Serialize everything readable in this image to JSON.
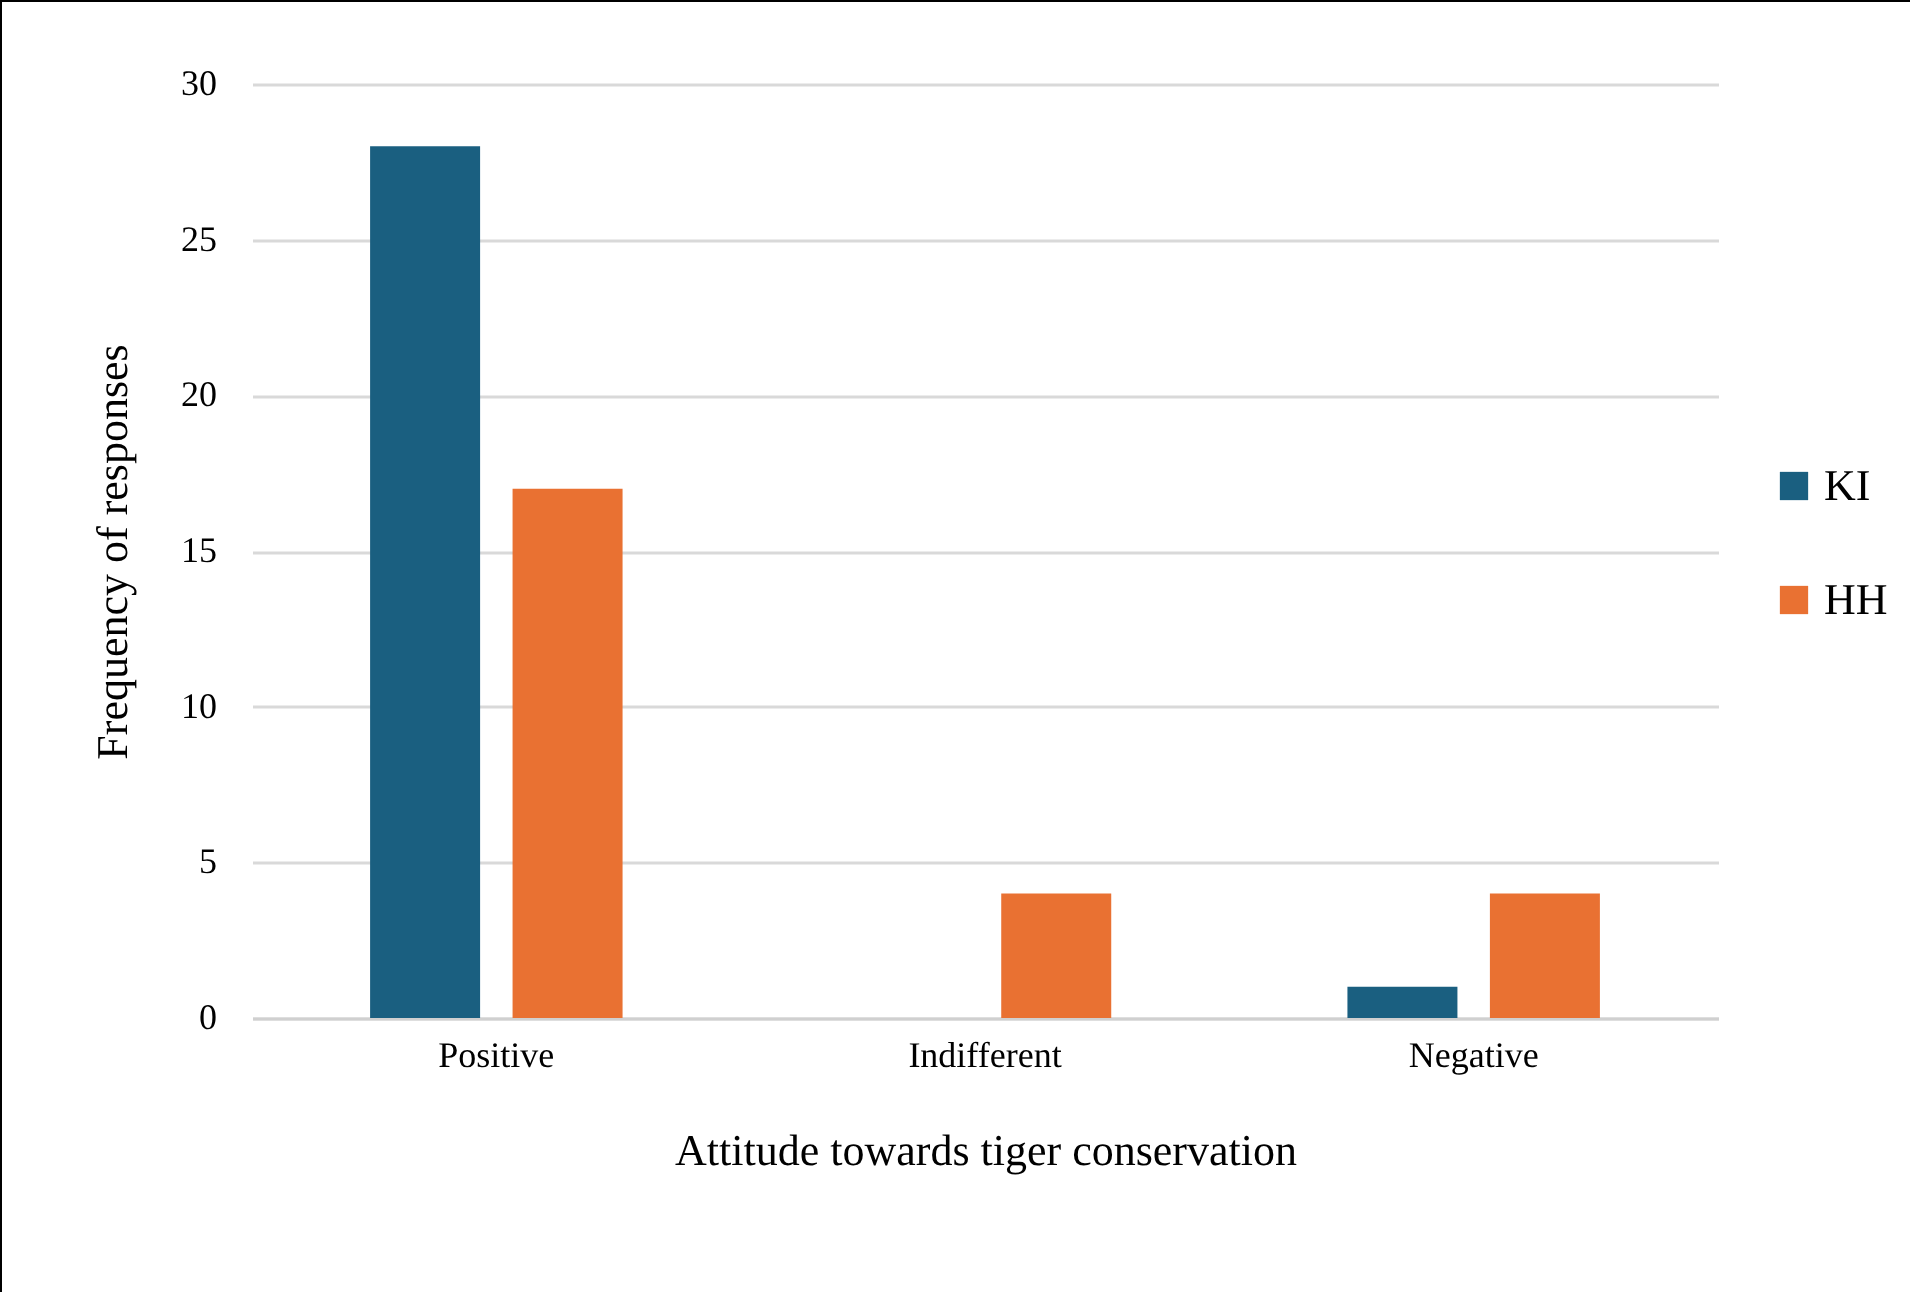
{
  "chart_data": {
    "type": "bar",
    "xlabel": "Attitude towards tiger conservation",
    "ylabel": "Frequency of responses",
    "categories": [
      "Positive",
      "Indifferent",
      "Negative"
    ],
    "series": [
      {
        "name": "KI",
        "color": "#1a5f80",
        "values": [
          28,
          0,
          1
        ]
      },
      {
        "name": "HH",
        "color": "#e97132",
        "values": [
          17,
          4,
          4
        ]
      }
    ],
    "ylim": [
      0,
      30
    ],
    "yticks": [
      0,
      5,
      10,
      15,
      20,
      25,
      30
    ],
    "grid": "y",
    "legend": "right"
  }
}
